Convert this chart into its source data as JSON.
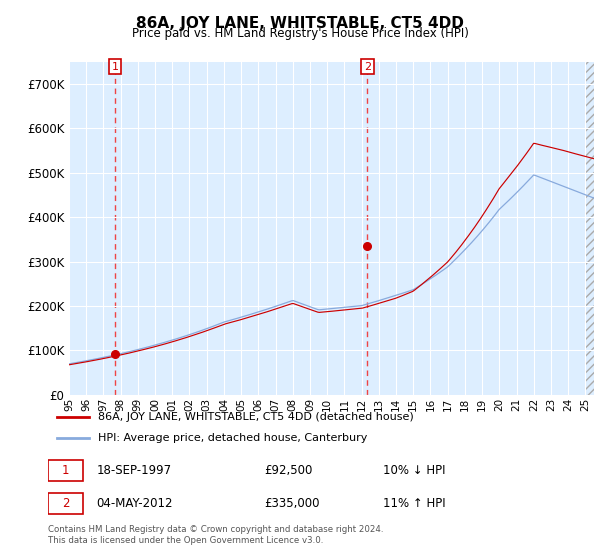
{
  "title": "86A, JOY LANE, WHITSTABLE, CT5 4DD",
  "subtitle": "Price paid vs. HM Land Registry's House Price Index (HPI)",
  "legend_line1": "86A, JOY LANE, WHITSTABLE, CT5 4DD (detached house)",
  "legend_line2": "HPI: Average price, detached house, Canterbury",
  "annotation1_date": "18-SEP-1997",
  "annotation1_price": "£92,500",
  "annotation1_hpi": "10% ↓ HPI",
  "annotation2_date": "04-MAY-2012",
  "annotation2_price": "£335,000",
  "annotation2_hpi": "11% ↑ HPI",
  "footer": "Contains HM Land Registry data © Crown copyright and database right 2024.\nThis data is licensed under the Open Government Licence v3.0.",
  "price_color": "#cc0000",
  "hpi_color": "#88aadd",
  "plot_bg_color": "#ddeeff",
  "grid_color": "#ffffff",
  "vline_color": "#ee4444",
  "box_color": "#cc0000",
  "ylim": [
    0,
    750000
  ],
  "yticks": [
    0,
    100000,
    200000,
    300000,
    400000,
    500000,
    600000,
    700000
  ],
  "sale1_year_idx": 33,
  "sale1_price": 92500,
  "sale2_year_idx": 207,
  "sale2_price": 335000,
  "xlim_start": 1995.0,
  "xlim_end": 2025.5
}
